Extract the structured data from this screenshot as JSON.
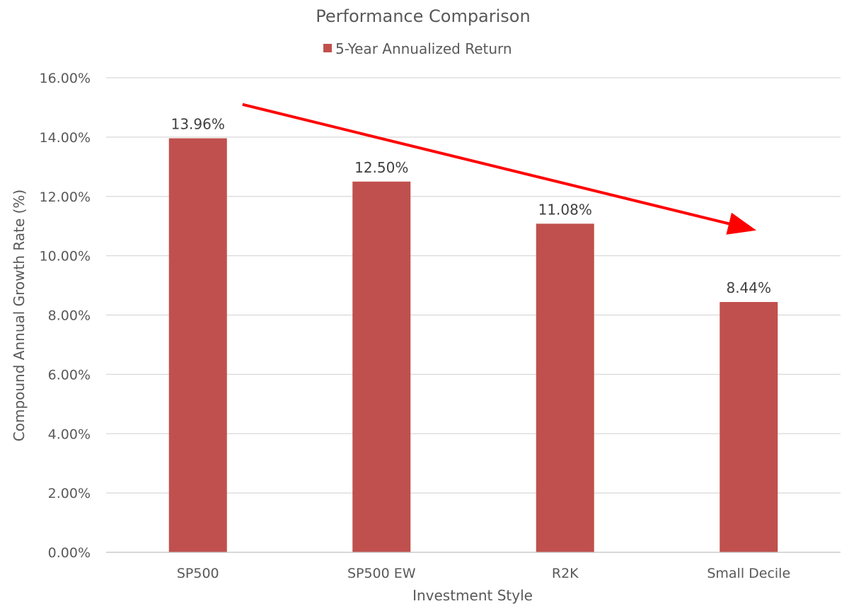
{
  "chart_data": {
    "type": "bar",
    "title": "Performance Comparison",
    "categories": [
      "SP500",
      "SP500 EW",
      "R2K",
      "Small Decile"
    ],
    "series": [
      {
        "name": "5-Year Annualized Return",
        "values": [
          13.96,
          12.5,
          11.08,
          8.44
        ],
        "color": "#c0504d"
      }
    ],
    "data_labels": [
      "13.96%",
      "12.50%",
      "11.08%",
      "8.44%"
    ],
    "xlabel": "Investment Style",
    "ylabel": "Compound Annual Growth Rate (%)",
    "ylim": [
      0,
      16
    ],
    "yticks": [
      0,
      2,
      4,
      6,
      8,
      10,
      12,
      14,
      16
    ],
    "ytick_labels": [
      "0.00%",
      "2.00%",
      "4.00%",
      "6.00%",
      "8.00%",
      "10.00%",
      "12.00%",
      "14.00%",
      "16.00%"
    ],
    "grid": true,
    "legend_position": "top",
    "annotation": {
      "type": "arrow",
      "color": "#ff0000",
      "from": {
        "category": "SP500",
        "y": 15.1
      },
      "to": {
        "category": "Small Decile",
        "y": 10.9
      }
    }
  }
}
